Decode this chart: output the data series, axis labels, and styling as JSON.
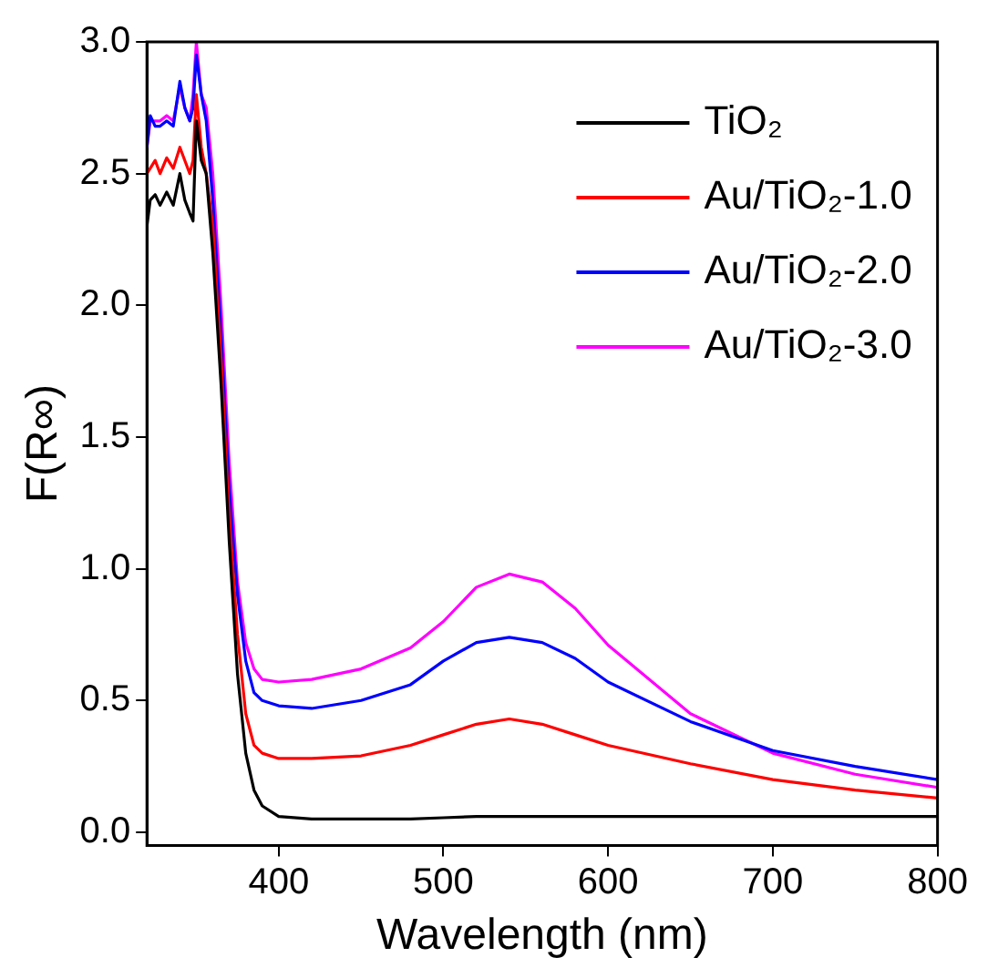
{
  "chart_data": {
    "type": "line",
    "xlabel": "Wavelength (nm)",
    "ylabel": "F(R∞)",
    "xlim": [
      320,
      800
    ],
    "ylim": [
      -0.05,
      3.0
    ],
    "xticks": [
      400,
      500,
      600,
      700,
      800
    ],
    "yticks": [
      {
        "value": 0,
        "label": "0.0"
      },
      0.5,
      {
        "value": 1,
        "label": "1.0"
      },
      1.5,
      {
        "value": 2,
        "label": "2.0"
      },
      2.5,
      {
        "value": 3,
        "label": "3.0"
      }
    ],
    "legend": "top right",
    "marker": "none",
    "line_style": "solid",
    "x": [
      320,
      322,
      325,
      328,
      332,
      336,
      340,
      343,
      346,
      348,
      350,
      353,
      356,
      360,
      365,
      370,
      375,
      380,
      385,
      390,
      400,
      420,
      450,
      480,
      500,
      520,
      540,
      560,
      580,
      600,
      650,
      700,
      750,
      800
    ],
    "series": [
      {
        "name": "TiO₂",
        "color": "#000000",
        "values": [
          2.3,
          2.4,
          2.42,
          2.38,
          2.43,
          2.38,
          2.5,
          2.4,
          2.35,
          2.32,
          2.7,
          2.55,
          2.5,
          2.2,
          1.7,
          1.1,
          0.6,
          0.3,
          0.16,
          0.1,
          0.06,
          0.05,
          0.05,
          0.05,
          0.055,
          0.06,
          0.06,
          0.06,
          0.06,
          0.06,
          0.06,
          0.06,
          0.06,
          0.06
        ]
      },
      {
        "name": "Au/TiO₂-1.0",
        "color": "#ff0000",
        "values": [
          2.5,
          2.52,
          2.55,
          2.5,
          2.56,
          2.52,
          2.6,
          2.55,
          2.5,
          2.55,
          2.8,
          2.6,
          2.5,
          2.3,
          1.8,
          1.2,
          0.75,
          0.45,
          0.33,
          0.3,
          0.28,
          0.28,
          0.29,
          0.33,
          0.37,
          0.41,
          0.43,
          0.41,
          0.37,
          0.33,
          0.26,
          0.2,
          0.16,
          0.13
        ]
      },
      {
        "name": "Au/TiO₂-2.0",
        "color": "#0000ff",
        "values": [
          2.6,
          2.72,
          2.68,
          2.68,
          2.7,
          2.68,
          2.85,
          2.75,
          2.7,
          2.75,
          2.95,
          2.8,
          2.7,
          2.4,
          1.9,
          1.3,
          0.9,
          0.65,
          0.53,
          0.5,
          0.48,
          0.47,
          0.5,
          0.56,
          0.65,
          0.72,
          0.74,
          0.72,
          0.66,
          0.57,
          0.42,
          0.31,
          0.25,
          0.2
        ]
      },
      {
        "name": "Au/TiO₂-3.0",
        "color": "#ff00ff",
        "values": [
          2.6,
          2.7,
          2.7,
          2.7,
          2.72,
          2.7,
          2.83,
          2.75,
          2.7,
          2.8,
          3.0,
          2.8,
          2.75,
          2.5,
          2.0,
          1.4,
          0.95,
          0.72,
          0.62,
          0.58,
          0.57,
          0.58,
          0.62,
          0.7,
          0.8,
          0.93,
          0.98,
          0.95,
          0.85,
          0.71,
          0.45,
          0.3,
          0.22,
          0.17
        ]
      }
    ]
  }
}
